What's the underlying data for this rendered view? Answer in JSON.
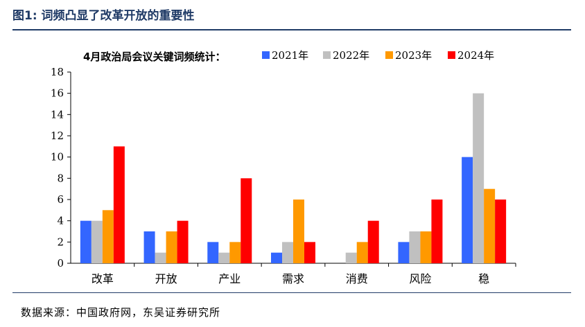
{
  "figure": {
    "title": "图1:  词频凸显了改革开放的重要性",
    "source": "数据来源：中国政府网，东吴证券研究所"
  },
  "chart_data": {
    "type": "bar",
    "title": "4月政治局会议关键词频统计：",
    "categories": [
      "改革",
      "开放",
      "产业",
      "需求",
      "消费",
      "风险",
      "稳"
    ],
    "series": [
      {
        "name": "2021年",
        "color": "#3366ff",
        "values": [
          4,
          3,
          2,
          1,
          0,
          2,
          10
        ]
      },
      {
        "name": "2022年",
        "color": "#c0c0c0",
        "values": [
          4,
          1,
          1,
          2,
          1,
          3,
          16
        ]
      },
      {
        "name": "2023年",
        "color": "#ff9900",
        "values": [
          5,
          3,
          2,
          6,
          2,
          3,
          7
        ]
      },
      {
        "name": "2024年",
        "color": "#ff0000",
        "values": [
          11,
          4,
          8,
          2,
          4,
          6,
          6
        ]
      }
    ],
    "ylim": [
      0,
      18
    ],
    "yticks": [
      0,
      2,
      4,
      6,
      8,
      10,
      12,
      14,
      16,
      18
    ],
    "grid": false,
    "legend": "top"
  }
}
